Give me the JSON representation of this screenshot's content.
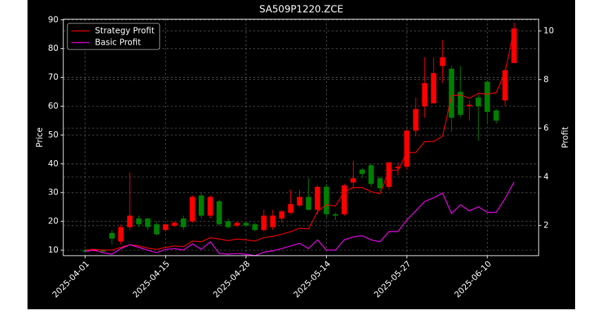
{
  "chart_data": {
    "type": "candlestick",
    "title": "SA509P1220.ZCE",
    "ylabel": "Price",
    "y2label": "Profit",
    "x": [
      "2025-04-01",
      "2025-04-02",
      "2025-04-03",
      "2025-04-07",
      "2025-04-08",
      "2025-04-09",
      "2025-04-10",
      "2025-04-11",
      "2025-04-14",
      "2025-04-15",
      "2025-04-16",
      "2025-04-17",
      "2025-04-18",
      "2025-04-21",
      "2025-04-22",
      "2025-04-23",
      "2025-04-24",
      "2025-04-25",
      "2025-04-28",
      "2025-04-29",
      "2025-04-30",
      "2025-05-06",
      "2025-05-07",
      "2025-05-08",
      "2025-05-09",
      "2025-05-12",
      "2025-05-13",
      "2025-05-14",
      "2025-05-15",
      "2025-05-16",
      "2025-05-19",
      "2025-05-20",
      "2025-05-21",
      "2025-05-22",
      "2025-05-23",
      "2025-05-26",
      "2025-05-27",
      "2025-05-28",
      "2025-05-29",
      "2025-05-30",
      "2025-06-03",
      "2025-06-04",
      "2025-06-05",
      "2025-06-06",
      "2025-06-09",
      "2025-06-10",
      "2025-06-11",
      "2025-06-12",
      "2025-06-13"
    ],
    "xticks": [
      "2025-04-01",
      "2025-04-15",
      "2025-04-28",
      "2025-05-14",
      "2025-05-27",
      "2025-06-10"
    ],
    "open": [
      10,
      9.8,
      10,
      16,
      13,
      18,
      21,
      21,
      19,
      17,
      18.5,
      21,
      20,
      29,
      22,
      27,
      20,
      18.5,
      19.5,
      19,
      17,
      18,
      21,
      23,
      25.5,
      28.5,
      24,
      32,
      22.5,
      22.5,
      33.5,
      38,
      39.5,
      35,
      32,
      38.5,
      39,
      51.5,
      60,
      61,
      74,
      73,
      65,
      60,
      63,
      68.5,
      58.5,
      62,
      75
    ],
    "high": [
      10.5,
      10.5,
      10.3,
      17,
      19,
      37,
      22,
      21,
      20,
      19,
      20,
      22,
      29,
      30,
      29,
      27.5,
      21,
      20,
      20,
      19.5,
      24,
      24,
      24,
      31,
      31,
      35,
      32.5,
      33,
      23,
      33,
      41,
      38.5,
      40,
      35.5,
      40.5,
      40.5,
      52,
      63,
      77,
      77,
      83,
      74,
      74,
      62,
      64,
      69,
      59,
      73,
      89
    ],
    "low": [
      9,
      9.5,
      9,
      12,
      12,
      17,
      18,
      17,
      15,
      16.5,
      18,
      17,
      19.5,
      21,
      21,
      18.5,
      17.5,
      18,
      18,
      16.5,
      16.5,
      17,
      19.5,
      22.5,
      25,
      24,
      22.5,
      21.5,
      20.5,
      22,
      31.5,
      35,
      32,
      30.5,
      31,
      36,
      38,
      49.5,
      56,
      61,
      68,
      51,
      56,
      55,
      48,
      54,
      54,
      60,
      75
    ],
    "close": [
      9.5,
      10.2,
      9.5,
      14,
      18,
      22,
      19,
      18,
      15.5,
      19,
      19.5,
      18,
      28.5,
      22,
      28.5,
      19,
      18,
      19.5,
      18.5,
      17,
      22,
      22,
      23.5,
      26,
      28.5,
      24,
      32,
      22.5,
      22,
      32.5,
      35,
      36.5,
      33,
      31.5,
      40.5,
      39,
      51.5,
      59,
      68,
      71.5,
      77,
      56,
      57,
      60.5,
      60,
      58,
      55,
      72.5,
      87
    ],
    "up_color": "#ff0000",
    "down_color": "#008000",
    "series": [
      {
        "name": "Strategy Profit",
        "color": "#ff0000",
        "axis": "y2",
        "values": [
          0.99,
          1.02,
          0.99,
          0.99,
          1.1,
          1.21,
          1.16,
          1.07,
          1.02,
          1.1,
          1.16,
          1.13,
          1.36,
          1.33,
          1.5,
          1.44,
          1.38,
          1.44,
          1.41,
          1.36,
          1.5,
          1.55,
          1.64,
          1.75,
          1.89,
          1.86,
          2.57,
          2.85,
          2.8,
          3.39,
          3.56,
          3.56,
          3.39,
          3.31,
          4.27,
          4.27,
          5.0,
          5.0,
          5.45,
          5.45,
          5.68,
          7.34,
          7.37,
          7.23,
          7.43,
          7.4,
          7.46,
          8.31,
          10.08
        ]
      },
      {
        "name": "Basic Profit",
        "color": "#ff00ff",
        "axis": "y2",
        "values": [
          0.93,
          0.99,
          0.88,
          0.82,
          1.05,
          1.21,
          1.1,
          0.99,
          0.88,
          1.02,
          1.05,
          0.99,
          1.24,
          1.02,
          1.33,
          0.85,
          0.82,
          0.85,
          0.82,
          0.76,
          0.9,
          0.96,
          1.05,
          1.16,
          1.27,
          1.05,
          1.41,
          0.99,
          0.99,
          1.41,
          1.53,
          1.58,
          1.41,
          1.33,
          1.75,
          1.75,
          2.23,
          2.6,
          2.99,
          3.14,
          3.33,
          2.49,
          2.85,
          2.6,
          2.77,
          2.54,
          2.54,
          3.11,
          3.79
        ]
      }
    ],
    "ylim": [
      8.1,
      90.2
    ],
    "yticks": [
      10,
      20,
      30,
      40,
      50,
      60,
      70,
      80,
      90
    ],
    "y2lim": [
      0.76,
      10.48
    ],
    "y2ticks": [
      2,
      4,
      6,
      8,
      10
    ],
    "grid": true,
    "legend": "upper left"
  }
}
